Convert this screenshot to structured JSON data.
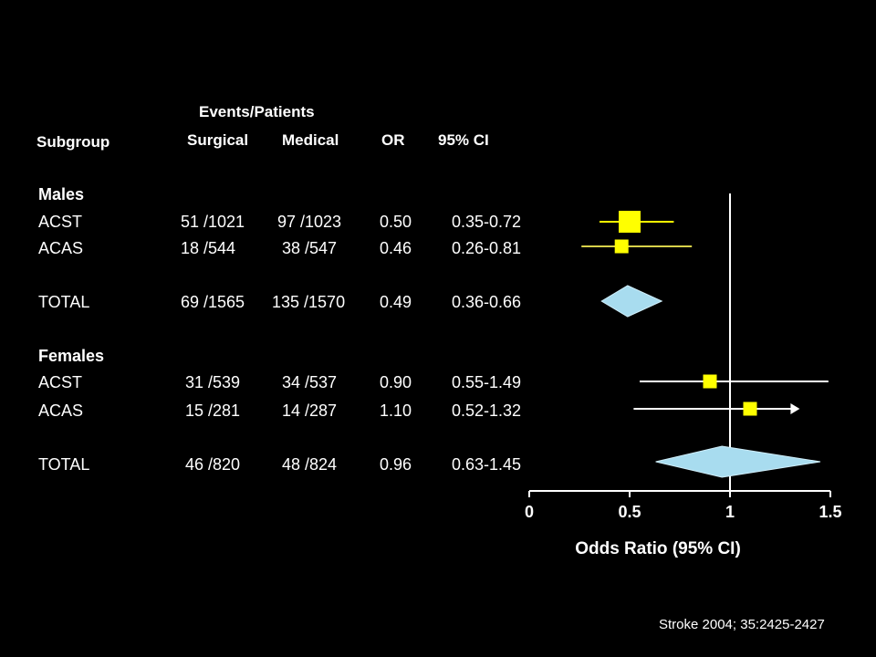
{
  "table": {
    "header_group": "Events/Patients",
    "headers": {
      "subgroup": "Subgroup",
      "surgical": "Surgical",
      "medical": "Medical",
      "or": "OR",
      "ci": "95% CI"
    },
    "groups": [
      {
        "label": "Males",
        "rows": [
          {
            "name": "ACST",
            "surgical": "51 /1021",
            "medical": "97 /1023",
            "or": "0.50",
            "ci": "0.35-0.72"
          },
          {
            "name": "ACAS",
            "surgical": "18 /544",
            "medical": "38 /547",
            "or": "0.46",
            "ci": "0.26-0.81"
          },
          {
            "name": "TOTAL",
            "surgical": "69 /1565",
            "medical": "135 /1570",
            "or": "0.49",
            "ci": "0.36-0.66"
          }
        ]
      },
      {
        "label": "Females",
        "rows": [
          {
            "name": "ACST",
            "surgical": "31 /539",
            "medical": "34 /537",
            "or": "0.90",
            "ci": "0.55-1.49"
          },
          {
            "name": "ACAS",
            "surgical": "15 /281",
            "medical": "14 /287",
            "or": "1.10",
            "ci": "0.52-1.32"
          },
          {
            "name": "TOTAL",
            "surgical": "46 /820",
            "medical": "48 /824",
            "or": "0.96",
            "ci": "0.63-1.45"
          }
        ]
      }
    ]
  },
  "citation": "Stroke 2004; 35:2425-2427",
  "chart_data": {
    "type": "forest",
    "xlabel": "Odds Ratio (95% CI)",
    "xlim": [
      0,
      1.5
    ],
    "xticks": [
      0,
      0.5,
      1,
      1.5
    ],
    "xtick_labels": [
      "0",
      "0.5",
      "1",
      "1.5"
    ],
    "reference_line": 1,
    "studies": [
      {
        "group": "Males",
        "name": "ACST",
        "or": 0.5,
        "ci": [
          0.35,
          0.72
        ],
        "marker": "square",
        "weight": "large"
      },
      {
        "group": "Males",
        "name": "ACAS",
        "or": 0.46,
        "ci": [
          0.26,
          0.81
        ],
        "marker": "square",
        "weight": "small"
      },
      {
        "group": "Males",
        "name": "TOTAL",
        "or": 0.49,
        "ci": [
          0.36,
          0.66
        ],
        "marker": "diamond"
      },
      {
        "group": "Females",
        "name": "ACST",
        "or": 0.9,
        "ci": [
          0.55,
          1.49
        ],
        "marker": "square",
        "weight": "small"
      },
      {
        "group": "Females",
        "name": "ACAS",
        "or": 1.1,
        "ci": [
          0.52,
          1.32
        ],
        "marker": "square",
        "weight": "small",
        "arrow_right": true
      },
      {
        "group": "Females",
        "name": "TOTAL",
        "or": 0.96,
        "ci": [
          0.63,
          1.45
        ],
        "marker": "diamond"
      }
    ],
    "colors": {
      "square": "#ffff00",
      "ci_line_males_acas": "#d8d24a",
      "ci_line": "#ffffff",
      "diamond": "#a8dcef",
      "axis": "#ffffff"
    }
  }
}
